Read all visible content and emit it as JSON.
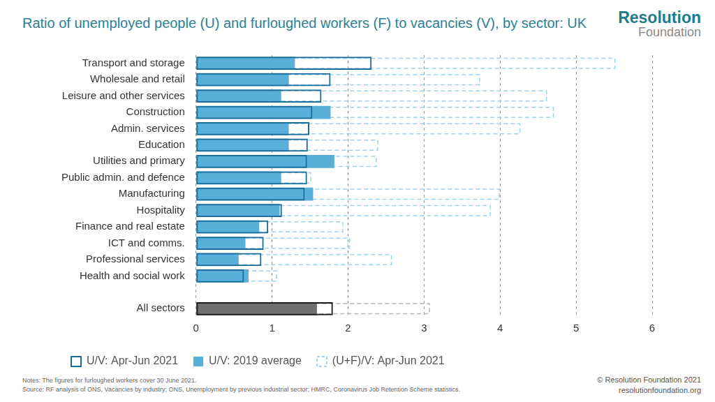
{
  "chart_data": {
    "type": "bar",
    "orientation": "horizontal",
    "title": "Ratio of unemployed people (U) and furloughed workers (F) to vacancies (V), by sector: UK",
    "annotations": [
      "Resolution",
      "Foundation",
      "Notes: The figures for furloughed workers cover 30 June 2021.",
      "Source: RF analysis of ONS, Vacancies by industry; ONS, Unemployment by previous industrial sector; HMRC, Coronavirus Job Retention Scheme statistics.",
      "© Resolution Foundation 2021",
      "resolutionfoundation.org"
    ],
    "categories": [
      "Transport and storage",
      "Wholesale and retail",
      "Leisure and other services",
      "Construction",
      "Admin. services",
      "Education",
      "Utilities and primary",
      "Public admin. and defence",
      "Manufacturing",
      "Hospitality",
      "Finance and real estate",
      "ICT and comms.",
      "Professional services",
      "Health and social work",
      null,
      "All sectors"
    ],
    "series": [
      {
        "name": "U/V: Apr-Jun 2021",
        "color": "#1b6d9c",
        "line_style": "solid",
        "colors": [
          "#1b6d9c",
          "#1b6d9c",
          "#1b6d9c",
          "#1b6d9c",
          "#1b6d9c",
          "#1b6d9c",
          "#1b6d9c",
          "#1b6d9c",
          "#1b6d9c",
          "#1b6d9c",
          "#1b6d9c",
          "#1b6d9c",
          "#1b6d9c",
          "#1b6d9c",
          "#1b6d9c",
          "#1a1a1a"
        ],
        "values": [
          2.31,
          1.77,
          1.65,
          1.53,
          1.49,
          1.47,
          1.46,
          1.46,
          1.43,
          1.13,
          0.95,
          0.89,
          0.86,
          0.63,
          null,
          1.8
        ]
      },
      {
        "name": "U/V: 2019 average",
        "color": "#5aafd8",
        "colors": [
          "#5aafd8",
          "#5aafd8",
          "#5aafd8",
          "#5aafd8",
          "#5aafd8",
          "#5aafd8",
          "#5aafd8",
          "#5aafd8",
          "#5aafd8",
          "#5aafd8",
          "#5aafd8",
          "#5aafd8",
          "#5aafd8",
          "#5aafd8",
          "#5aafd8",
          "#6f6f6f"
        ],
        "values": [
          1.3,
          1.22,
          1.12,
          1.77,
          1.22,
          1.22,
          1.82,
          1.12,
          1.54,
          1.1,
          0.83,
          0.65,
          0.56,
          0.69,
          null,
          1.59
        ]
      },
      {
        "name": "(U+F)/V: Apr-Jun 2021",
        "color": "#9fd1ea",
        "line_style": "dashed",
        "colors": [
          "#9fd1ea",
          "#9fd1ea",
          "#9fd1ea",
          "#9fd1ea",
          "#9fd1ea",
          "#9fd1ea",
          "#9fd1ea",
          "#9fd1ea",
          "#9fd1ea",
          "#9fd1ea",
          "#9fd1ea",
          "#9fd1ea",
          "#9fd1ea",
          "#9fd1ea",
          "#9fd1ea",
          "#b5b5b5"
        ],
        "values": [
          5.51,
          3.73,
          4.61,
          4.7,
          4.26,
          2.39,
          2.37,
          1.51,
          3.99,
          3.87,
          1.93,
          2.02,
          2.57,
          1.06,
          null,
          3.07
        ]
      }
    ],
    "xlim": [
      0,
      6
    ],
    "xticks": [
      0,
      1,
      2,
      3,
      4,
      5,
      6
    ],
    "grid": true,
    "legend": "bottom"
  }
}
